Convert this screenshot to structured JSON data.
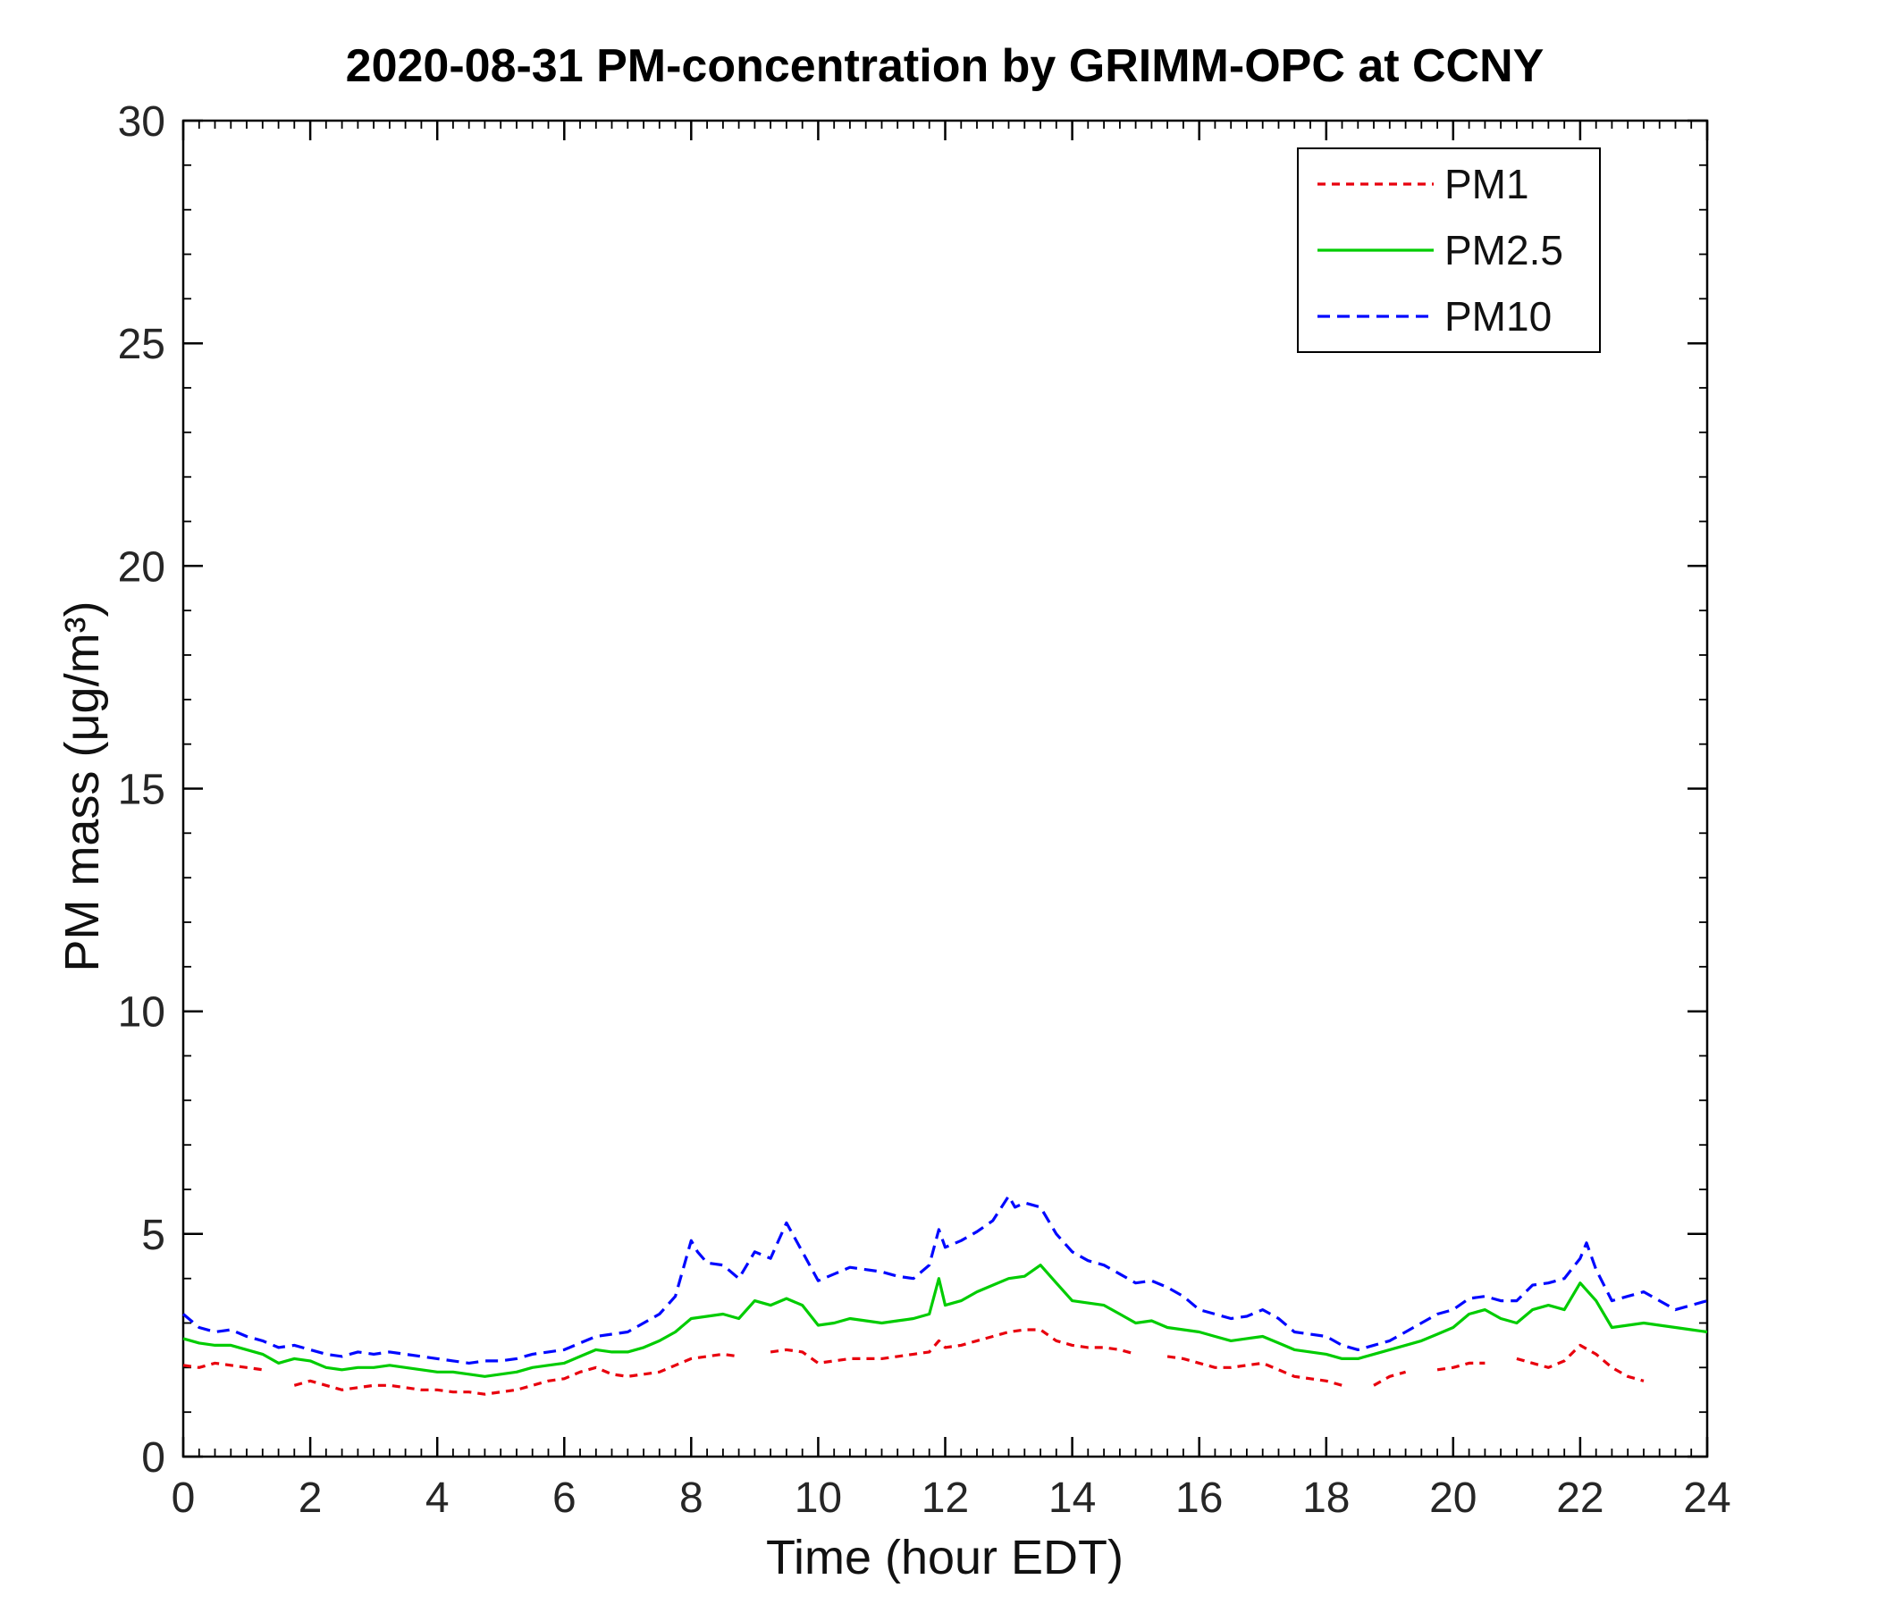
{
  "figure": {
    "background": "#ffffff"
  },
  "chart_data": {
    "type": "line",
    "title": "2020-08-31 PM-concentration by GRIMM-OPC at CCNY",
    "xlabel": "Time (hour EDT)",
    "ylabel": "PM mass (μg/m³)",
    "xlim": [
      0,
      24
    ],
    "ylim": [
      0,
      30
    ],
    "xticks": [
      0,
      2,
      4,
      6,
      8,
      10,
      12,
      14,
      16,
      18,
      20,
      22,
      24
    ],
    "yticks": [
      0,
      5,
      10,
      15,
      20,
      25,
      30
    ],
    "x_minor_step": 0.25,
    "y_minor_step": 1,
    "grid": false,
    "legend_position": "top-right",
    "axis_color": "#000000",
    "tick_label_color": "#262626",
    "series": [
      {
        "name": "PM1",
        "color": "#e8000d",
        "line_style": "dashed",
        "dash_pattern": "9 7",
        "points": [
          [
            0,
            2.05
          ],
          [
            0.25,
            2.0
          ],
          [
            0.5,
            2.1
          ],
          [
            0.75,
            2.05
          ],
          [
            1,
            2.0
          ],
          [
            1.25,
            1.95
          ],
          [
            1.5,
            null
          ],
          [
            1.75,
            1.6
          ],
          [
            2,
            1.7
          ],
          [
            2.25,
            1.6
          ],
          [
            2.5,
            1.5
          ],
          [
            2.75,
            1.55
          ],
          [
            3,
            1.6
          ],
          [
            3.25,
            1.6
          ],
          [
            3.5,
            1.55
          ],
          [
            3.75,
            1.5
          ],
          [
            4,
            1.5
          ],
          [
            4.25,
            1.45
          ],
          [
            4.5,
            1.45
          ],
          [
            4.75,
            1.4
          ],
          [
            5,
            1.45
          ],
          [
            5.25,
            1.5
          ],
          [
            5.5,
            1.6
          ],
          [
            5.75,
            1.7
          ],
          [
            6,
            1.75
          ],
          [
            6.25,
            1.9
          ],
          [
            6.5,
            2.0
          ],
          [
            6.75,
            1.85
          ],
          [
            7,
            1.8
          ],
          [
            7.25,
            1.85
          ],
          [
            7.5,
            1.9
          ],
          [
            7.75,
            2.05
          ],
          [
            8,
            2.2
          ],
          [
            8.25,
            2.25
          ],
          [
            8.5,
            2.3
          ],
          [
            8.75,
            2.25
          ],
          [
            9,
            null
          ],
          [
            9.25,
            2.35
          ],
          [
            9.5,
            2.4
          ],
          [
            9.75,
            2.35
          ],
          [
            10,
            2.1
          ],
          [
            10.25,
            2.15
          ],
          [
            10.5,
            2.2
          ],
          [
            10.75,
            2.2
          ],
          [
            11,
            2.2
          ],
          [
            11.25,
            2.25
          ],
          [
            11.5,
            2.3
          ],
          [
            11.75,
            2.35
          ],
          [
            11.9,
            2.6
          ],
          [
            12,
            2.45
          ],
          [
            12.25,
            2.5
          ],
          [
            12.5,
            2.6
          ],
          [
            12.75,
            2.7
          ],
          [
            13,
            2.8
          ],
          [
            13.25,
            2.85
          ],
          [
            13.5,
            2.85
          ],
          [
            13.75,
            2.6
          ],
          [
            14,
            2.5
          ],
          [
            14.25,
            2.45
          ],
          [
            14.5,
            2.45
          ],
          [
            14.75,
            2.4
          ],
          [
            15,
            2.3
          ],
          [
            15.25,
            null
          ],
          [
            15.5,
            2.25
          ],
          [
            15.75,
            2.2
          ],
          [
            16,
            2.1
          ],
          [
            16.25,
            2.0
          ],
          [
            16.5,
            2.0
          ],
          [
            16.75,
            2.05
          ],
          [
            17,
            2.1
          ],
          [
            17.25,
            1.95
          ],
          [
            17.5,
            1.8
          ],
          [
            17.75,
            1.75
          ],
          [
            18,
            1.7
          ],
          [
            18.25,
            1.6
          ],
          [
            18.5,
            null
          ],
          [
            18.75,
            1.6
          ],
          [
            19,
            1.8
          ],
          [
            19.25,
            1.9
          ],
          [
            19.5,
            null
          ],
          [
            19.75,
            1.95
          ],
          [
            20,
            2.0
          ],
          [
            20.25,
            2.1
          ],
          [
            20.5,
            2.1
          ],
          [
            20.75,
            null
          ],
          [
            21,
            2.2
          ],
          [
            21.25,
            2.1
          ],
          [
            21.5,
            2.0
          ],
          [
            21.75,
            2.15
          ],
          [
            22,
            2.5
          ],
          [
            22.25,
            2.3
          ],
          [
            22.5,
            2.0
          ],
          [
            22.75,
            1.8
          ],
          [
            23,
            1.7
          ]
        ]
      },
      {
        "name": "PM2.5",
        "color": "#00cc00",
        "line_style": "solid",
        "dash_pattern": "",
        "points": [
          [
            0,
            2.65
          ],
          [
            0.25,
            2.55
          ],
          [
            0.5,
            2.5
          ],
          [
            0.75,
            2.5
          ],
          [
            1,
            2.4
          ],
          [
            1.25,
            2.3
          ],
          [
            1.5,
            2.1
          ],
          [
            1.75,
            2.2
          ],
          [
            2,
            2.15
          ],
          [
            2.25,
            2.0
          ],
          [
            2.5,
            1.95
          ],
          [
            2.75,
            2.0
          ],
          [
            3,
            2.0
          ],
          [
            3.25,
            2.05
          ],
          [
            3.5,
            2.0
          ],
          [
            3.75,
            1.95
          ],
          [
            4,
            1.9
          ],
          [
            4.25,
            1.9
          ],
          [
            4.5,
            1.85
          ],
          [
            4.75,
            1.8
          ],
          [
            5,
            1.85
          ],
          [
            5.25,
            1.9
          ],
          [
            5.5,
            2.0
          ],
          [
            5.75,
            2.05
          ],
          [
            6,
            2.1
          ],
          [
            6.25,
            2.25
          ],
          [
            6.5,
            2.4
          ],
          [
            6.75,
            2.35
          ],
          [
            7,
            2.35
          ],
          [
            7.25,
            2.45
          ],
          [
            7.5,
            2.6
          ],
          [
            7.75,
            2.8
          ],
          [
            8,
            3.1
          ],
          [
            8.25,
            3.15
          ],
          [
            8.5,
            3.2
          ],
          [
            8.75,
            3.1
          ],
          [
            9,
            3.5
          ],
          [
            9.25,
            3.4
          ],
          [
            9.5,
            3.55
          ],
          [
            9.75,
            3.4
          ],
          [
            10,
            2.95
          ],
          [
            10.25,
            3.0
          ],
          [
            10.5,
            3.1
          ],
          [
            10.75,
            3.05
          ],
          [
            11,
            3.0
          ],
          [
            11.25,
            3.05
          ],
          [
            11.5,
            3.1
          ],
          [
            11.75,
            3.2
          ],
          [
            11.9,
            4.0
          ],
          [
            12,
            3.4
          ],
          [
            12.25,
            3.5
          ],
          [
            12.5,
            3.7
          ],
          [
            12.75,
            3.85
          ],
          [
            13,
            4.0
          ],
          [
            13.25,
            4.05
          ],
          [
            13.5,
            4.3
          ],
          [
            13.75,
            3.9
          ],
          [
            14,
            3.5
          ],
          [
            14.25,
            3.45
          ],
          [
            14.5,
            3.4
          ],
          [
            14.75,
            3.2
          ],
          [
            15,
            3.0
          ],
          [
            15.25,
            3.05
          ],
          [
            15.5,
            2.9
          ],
          [
            15.75,
            2.85
          ],
          [
            16,
            2.8
          ],
          [
            16.25,
            2.7
          ],
          [
            16.5,
            2.6
          ],
          [
            16.75,
            2.65
          ],
          [
            17,
            2.7
          ],
          [
            17.25,
            2.55
          ],
          [
            17.5,
            2.4
          ],
          [
            17.75,
            2.35
          ],
          [
            18,
            2.3
          ],
          [
            18.25,
            2.2
          ],
          [
            18.5,
            2.2
          ],
          [
            18.75,
            2.3
          ],
          [
            19,
            2.4
          ],
          [
            19.25,
            2.5
          ],
          [
            19.5,
            2.6
          ],
          [
            19.75,
            2.75
          ],
          [
            20,
            2.9
          ],
          [
            20.25,
            3.2
          ],
          [
            20.5,
            3.3
          ],
          [
            20.75,
            3.1
          ],
          [
            21,
            3.0
          ],
          [
            21.25,
            3.3
          ],
          [
            21.5,
            3.4
          ],
          [
            21.75,
            3.3
          ],
          [
            22,
            3.9
          ],
          [
            22.25,
            3.5
          ],
          [
            22.5,
            2.9
          ],
          [
            22.75,
            2.95
          ],
          [
            23,
            3.0
          ],
          [
            23.25,
            2.95
          ],
          [
            23.5,
            2.9
          ],
          [
            23.75,
            2.85
          ],
          [
            24,
            2.8
          ]
        ]
      },
      {
        "name": "PM10",
        "color": "#0008ff",
        "line_style": "dashed",
        "dash_pattern": "14 8",
        "points": [
          [
            0,
            3.2
          ],
          [
            0.25,
            2.9
          ],
          [
            0.5,
            2.8
          ],
          [
            0.75,
            2.85
          ],
          [
            1,
            2.7
          ],
          [
            1.25,
            2.6
          ],
          [
            1.5,
            2.45
          ],
          [
            1.75,
            2.5
          ],
          [
            2,
            2.4
          ],
          [
            2.25,
            2.3
          ],
          [
            2.5,
            2.25
          ],
          [
            2.75,
            2.35
          ],
          [
            3,
            2.3
          ],
          [
            3.25,
            2.35
          ],
          [
            3.5,
            2.3
          ],
          [
            3.75,
            2.25
          ],
          [
            4,
            2.2
          ],
          [
            4.25,
            2.15
          ],
          [
            4.5,
            2.1
          ],
          [
            4.75,
            2.15
          ],
          [
            5,
            2.15
          ],
          [
            5.25,
            2.2
          ],
          [
            5.5,
            2.3
          ],
          [
            5.75,
            2.35
          ],
          [
            6,
            2.4
          ],
          [
            6.25,
            2.55
          ],
          [
            6.5,
            2.7
          ],
          [
            6.75,
            2.75
          ],
          [
            7,
            2.8
          ],
          [
            7.25,
            3.0
          ],
          [
            7.5,
            3.2
          ],
          [
            7.75,
            3.6
          ],
          [
            8,
            4.85
          ],
          [
            8.1,
            4.6
          ],
          [
            8.25,
            4.35
          ],
          [
            8.5,
            4.3
          ],
          [
            8.75,
            4.0
          ],
          [
            9,
            4.6
          ],
          [
            9.25,
            4.45
          ],
          [
            9.5,
            5.25
          ],
          [
            9.75,
            4.6
          ],
          [
            10,
            3.95
          ],
          [
            10.25,
            4.1
          ],
          [
            10.5,
            4.25
          ],
          [
            10.75,
            4.2
          ],
          [
            11,
            4.15
          ],
          [
            11.25,
            4.05
          ],
          [
            11.5,
            4.0
          ],
          [
            11.75,
            4.3
          ],
          [
            11.9,
            5.1
          ],
          [
            12,
            4.7
          ],
          [
            12.25,
            4.85
          ],
          [
            12.5,
            5.05
          ],
          [
            12.75,
            5.3
          ],
          [
            13,
            5.85
          ],
          [
            13.1,
            5.6
          ],
          [
            13.25,
            5.7
          ],
          [
            13.5,
            5.6
          ],
          [
            13.75,
            5.0
          ],
          [
            14,
            4.6
          ],
          [
            14.25,
            4.4
          ],
          [
            14.5,
            4.3
          ],
          [
            14.75,
            4.1
          ],
          [
            15,
            3.9
          ],
          [
            15.25,
            3.95
          ],
          [
            15.5,
            3.8
          ],
          [
            15.75,
            3.6
          ],
          [
            16,
            3.3
          ],
          [
            16.25,
            3.2
          ],
          [
            16.5,
            3.1
          ],
          [
            16.75,
            3.15
          ],
          [
            17,
            3.3
          ],
          [
            17.25,
            3.1
          ],
          [
            17.5,
            2.8
          ],
          [
            17.75,
            2.75
          ],
          [
            18,
            2.7
          ],
          [
            18.25,
            2.5
          ],
          [
            18.5,
            2.4
          ],
          [
            18.75,
            2.5
          ],
          [
            19,
            2.6
          ],
          [
            19.25,
            2.8
          ],
          [
            19.5,
            3.0
          ],
          [
            19.75,
            3.2
          ],
          [
            20,
            3.3
          ],
          [
            20.25,
            3.55
          ],
          [
            20.5,
            3.6
          ],
          [
            20.75,
            3.5
          ],
          [
            21,
            3.5
          ],
          [
            21.25,
            3.85
          ],
          [
            21.5,
            3.9
          ],
          [
            21.75,
            4.0
          ],
          [
            22,
            4.45
          ],
          [
            22.1,
            4.8
          ],
          [
            22.25,
            4.2
          ],
          [
            22.5,
            3.5
          ],
          [
            22.75,
            3.6
          ],
          [
            23,
            3.7
          ],
          [
            23.25,
            3.5
          ],
          [
            23.5,
            3.3
          ],
          [
            23.75,
            3.4
          ],
          [
            24,
            3.5
          ]
        ]
      }
    ],
    "legend": {
      "labels": [
        "PM1",
        "PM2.5",
        "PM10"
      ],
      "border_color": "#000000",
      "background": "#ffffff"
    }
  }
}
